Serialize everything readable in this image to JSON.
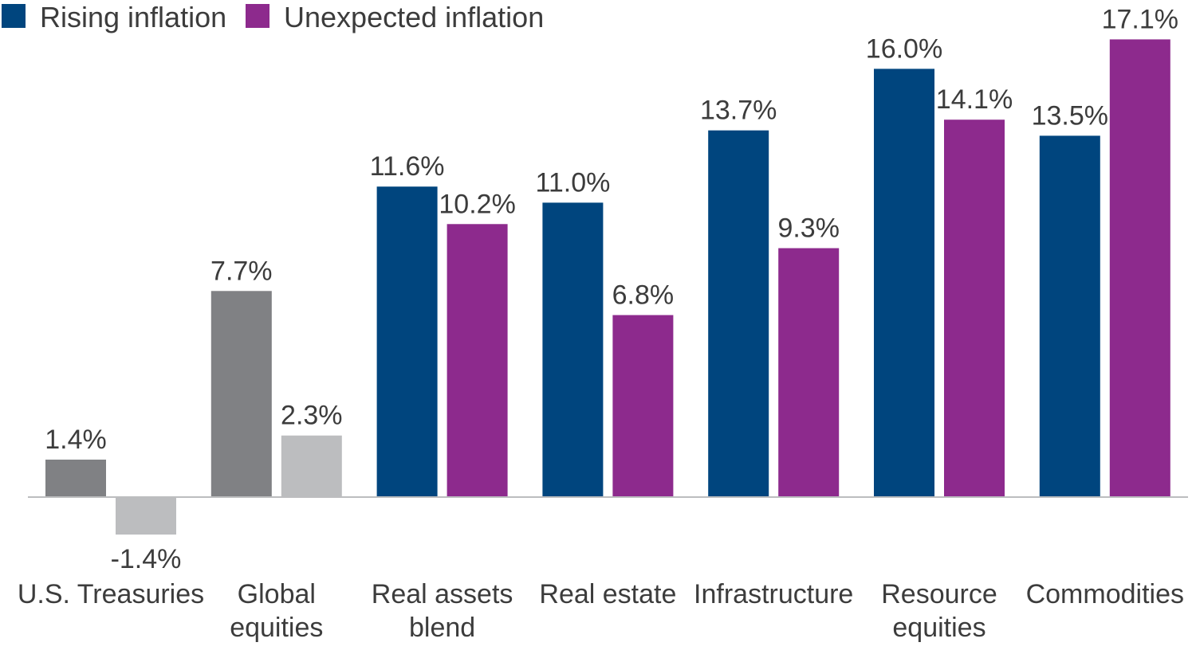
{
  "chart_data": {
    "type": "bar",
    "title": "",
    "xlabel": "",
    "ylabel": "",
    "ylim": [
      -2,
      18
    ],
    "grid": false,
    "legend_placement": "top-left",
    "categories": [
      "U.S. Treasuries",
      "Global equities",
      "Real assets blend",
      "Real estate",
      "Infrastructure",
      "Resource equities",
      "Commodities"
    ],
    "category_lines": [
      [
        "U.S. Treasuries"
      ],
      [
        "Global",
        "equities"
      ],
      [
        "Real assets",
        "blend"
      ],
      [
        "Real estate"
      ],
      [
        "Infrastructure"
      ],
      [
        "Resource",
        "equities"
      ],
      [
        "Commodities"
      ]
    ],
    "series": [
      {
        "name": "Rising inflation",
        "color": "#00457e",
        "values": [
          1.4,
          7.7,
          11.6,
          11.0,
          13.7,
          16.0,
          13.5
        ],
        "labels": [
          "1.4%",
          "7.7%",
          "11.6%",
          "11.0%",
          "13.7%",
          "16.0%",
          "13.5%"
        ]
      },
      {
        "name": "Unexpected inflation",
        "color": "#8d2a8d",
        "values": [
          -1.4,
          2.3,
          10.2,
          6.8,
          9.3,
          14.1,
          17.1
        ],
        "labels": [
          "-1.4%",
          "2.3%",
          "10.2%",
          "6.8%",
          "9.3%",
          "14.1%",
          "17.1%"
        ]
      }
    ],
    "point_colors": [
      [
        "#808184",
        "#808184",
        "#00457e",
        "#00457e",
        "#00457e",
        "#00457e",
        "#00457e"
      ],
      [
        "#bcbdbf",
        "#bcbdbf",
        "#8d2a8d",
        "#8d2a8d",
        "#8d2a8d",
        "#8d2a8d",
        "#8d2a8d"
      ]
    ],
    "baseline_color": "#bcbdbf"
  }
}
